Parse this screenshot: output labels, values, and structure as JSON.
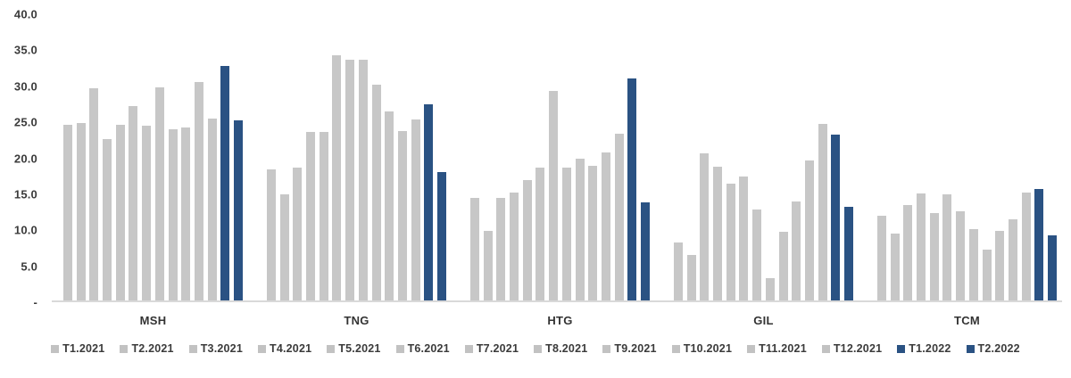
{
  "colors": {
    "bar_2021": "#c7c7c7",
    "bar_2022": "#2a5283",
    "axis_line": "#d9d9d9",
    "text": "#3b3b3b"
  },
  "chart_data": {
    "type": "bar",
    "title": "",
    "xlabel": "",
    "ylabel": "",
    "ylim": [
      0,
      40
    ],
    "grid": false,
    "legend_position": "bottom",
    "y_ticks": [
      {
        "label": "40.0",
        "value": 40
      },
      {
        "label": "35.0",
        "value": 35
      },
      {
        "label": "30.0",
        "value": 30
      },
      {
        "label": "25.0",
        "value": 25
      },
      {
        "label": "20.0",
        "value": 20
      },
      {
        "label": "15.0",
        "value": 15
      },
      {
        "label": "10.0",
        "value": 10
      },
      {
        "label": "5.0",
        "value": 5
      },
      {
        "label": "-",
        "value": 0
      }
    ],
    "categories": [
      "MSH",
      "TNG",
      "HTG",
      "GIL",
      "TCM"
    ],
    "series_labels": [
      "T1.2021",
      "T2.2021",
      "T3.2021",
      "T4.2021",
      "T5.2021",
      "T6.2021",
      "T7.2021",
      "T8.2021",
      "T9.2021",
      "T10.2021",
      "T11.2021",
      "T12.2021",
      "T1.2022",
      "T2.2022"
    ],
    "series_years": [
      2021,
      2021,
      2021,
      2021,
      2021,
      2021,
      2021,
      2021,
      2021,
      2021,
      2021,
      2021,
      2022,
      2022
    ],
    "groups": [
      {
        "category": "MSH",
        "values": [
          24.4,
          24.7,
          29.5,
          22.4,
          24.4,
          27.0,
          24.3,
          29.6,
          23.8,
          24.0,
          30.4,
          25.3,
          32.6,
          25.0
        ]
      },
      {
        "category": "TNG",
        "values": [
          18.2,
          14.8,
          18.4,
          23.4,
          23.4,
          34.1,
          33.4,
          33.4,
          30.0,
          26.2,
          23.5,
          25.1,
          27.2,
          17.9
        ]
      },
      {
        "category": "HTG",
        "values": [
          14.3,
          9.7,
          14.2,
          15.0,
          16.7,
          18.5,
          29.1,
          18.5,
          19.7,
          18.7,
          20.6,
          23.2,
          30.9,
          13.6
        ]
      },
      {
        "category": "GIL",
        "values": [
          8.0,
          6.3,
          20.5,
          18.6,
          16.2,
          17.2,
          12.6,
          3.1,
          9.6,
          13.7,
          19.5,
          24.5,
          23.0,
          13.0
        ]
      },
      {
        "category": "TCM",
        "values": [
          11.8,
          9.3,
          13.2,
          14.9,
          12.1,
          14.8,
          12.4,
          9.9,
          7.1,
          9.7,
          11.3,
          15.0,
          15.5,
          9.1
        ]
      }
    ]
  }
}
